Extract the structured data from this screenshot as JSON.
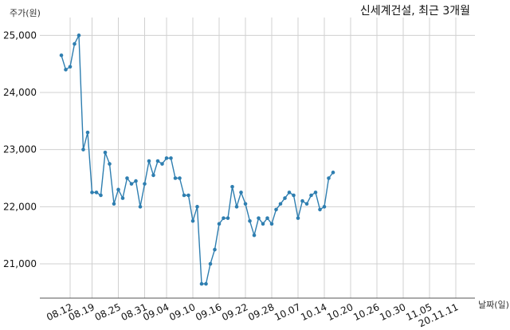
{
  "chart_data": {
    "type": "line",
    "title": "신세계건설, 최근 3개월",
    "xlabel": "날짜(일)",
    "ylabel": "주가(원)",
    "ylim": [
      20400,
      25200
    ],
    "y_ticks": [
      "21,000",
      "22,000",
      "23,000",
      "24,000",
      "25,000"
    ],
    "y_tick_values": [
      21000,
      22000,
      23000,
      24000,
      25000
    ],
    "x_tick_labels": [
      "08.12",
      "08.19",
      "08.25",
      "08.31",
      "09.04",
      "09.10",
      "09.16",
      "09.22",
      "09.28",
      "10.07",
      "10.14",
      "10.20",
      "10.26",
      "10.30",
      "11.05",
      "20.11.11"
    ],
    "x_tick_indices": [
      2,
      7,
      13,
      19,
      24,
      30,
      36,
      42,
      48,
      54,
      60,
      66,
      72,
      78,
      84,
      90
    ],
    "grid": true,
    "line_color": "#2e7eb0",
    "series": [
      {
        "values": [
          24650,
          24400,
          24450,
          24850,
          25000,
          23000,
          23300,
          22250,
          22250,
          22200,
          22950,
          22750,
          22050,
          22300,
          22150,
          22500,
          22400,
          22450,
          22000,
          22400,
          22800,
          22550,
          22800,
          22750,
          22850,
          22850,
          22500,
          22500,
          22200,
          22200,
          21750,
          22000,
          20650,
          20650,
          21000,
          21250,
          21700,
          21800,
          21800,
          22350,
          22000,
          22250,
          22050,
          21750,
          21500,
          21800,
          21700,
          21800,
          21700,
          21950,
          22050,
          22150,
          22250,
          22200,
          21800,
          22100,
          22050,
          22200,
          22250,
          21950,
          22000,
          22500,
          22600
        ]
      }
    ]
  }
}
